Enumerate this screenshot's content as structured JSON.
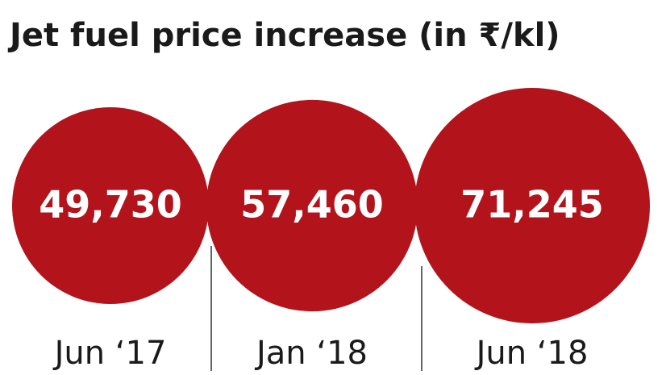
{
  "chart_data": {
    "type": "bubble",
    "title": "Jet fuel price increase  (in ₹/kl)",
    "categories": [
      "Jun ‘17",
      "Jan ‘18",
      "Jun ‘18"
    ],
    "values": [
      49730,
      57460,
      71245
    ],
    "value_labels": [
      "49,730",
      "57,460",
      "71,245"
    ],
    "color": "#b3141c"
  }
}
